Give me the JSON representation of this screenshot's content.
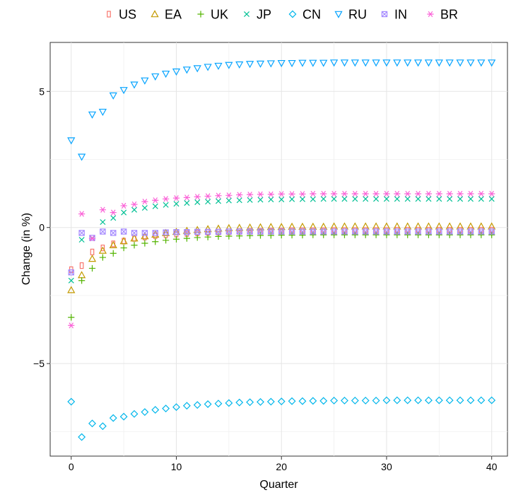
{
  "chart_data": {
    "type": "scatter",
    "title": "",
    "xlabel": "Quarter",
    "ylabel": "Change (in %)",
    "xlim": [
      -2,
      41.5
    ],
    "ylim": [
      -8.4,
      6.8
    ],
    "x_ticks": [
      0,
      10,
      20,
      30,
      40
    ],
    "y_ticks": [
      -5,
      0,
      5
    ],
    "y_tick_labels": [
      "−5",
      "0",
      "5"
    ],
    "grid": true,
    "legend_position": "top",
    "x": [
      0,
      1,
      2,
      3,
      4,
      5,
      6,
      7,
      8,
      9,
      10,
      11,
      12,
      13,
      14,
      15,
      16,
      17,
      18,
      19,
      20,
      21,
      22,
      23,
      24,
      25,
      26,
      27,
      28,
      29,
      30,
      31,
      32,
      33,
      34,
      35,
      36,
      37,
      38,
      39,
      40
    ],
    "series": [
      {
        "name": "US",
        "marker": "square-outline",
        "color": "#F8766D",
        "values": [
          -1.55,
          -1.4,
          -0.9,
          -0.75,
          -0.6,
          -0.5,
          -0.4,
          -0.35,
          -0.3,
          -0.27,
          -0.24,
          -0.22,
          -0.2,
          -0.18,
          -0.17,
          -0.16,
          -0.15,
          -0.14,
          -0.14,
          -0.13,
          -0.13,
          -0.12,
          -0.12,
          -0.12,
          -0.12,
          -0.11,
          -0.11,
          -0.11,
          -0.11,
          -0.11,
          -0.11,
          -0.1,
          -0.1,
          -0.1,
          -0.1,
          -0.1,
          -0.1,
          -0.1,
          -0.1,
          -0.1,
          -0.1
        ]
      },
      {
        "name": "EA",
        "marker": "triangle-up",
        "color": "#C49A00",
        "values": [
          -2.3,
          -1.75,
          -1.15,
          -0.85,
          -0.65,
          -0.5,
          -0.4,
          -0.32,
          -0.26,
          -0.2,
          -0.16,
          -0.12,
          -0.09,
          -0.06,
          -0.04,
          -0.02,
          -0.01,
          0.0,
          0.01,
          0.02,
          0.02,
          0.03,
          0.03,
          0.03,
          0.03,
          0.04,
          0.04,
          0.04,
          0.04,
          0.04,
          0.04,
          0.04,
          0.04,
          0.04,
          0.04,
          0.04,
          0.04,
          0.04,
          0.04,
          0.04,
          0.04
        ]
      },
      {
        "name": "UK",
        "marker": "plus",
        "color": "#53B400",
        "values": [
          -3.3,
          -1.95,
          -1.5,
          -1.1,
          -0.95,
          -0.75,
          -0.65,
          -0.58,
          -0.52,
          -0.47,
          -0.43,
          -0.4,
          -0.37,
          -0.35,
          -0.33,
          -0.32,
          -0.31,
          -0.3,
          -0.29,
          -0.29,
          -0.28,
          -0.28,
          -0.28,
          -0.27,
          -0.27,
          -0.27,
          -0.27,
          -0.27,
          -0.27,
          -0.27,
          -0.27,
          -0.27,
          -0.27,
          -0.27,
          -0.27,
          -0.27,
          -0.27,
          -0.27,
          -0.27,
          -0.27,
          -0.27
        ]
      },
      {
        "name": "JP",
        "marker": "cross",
        "color": "#00C094",
        "values": [
          -1.95,
          -0.45,
          -0.4,
          0.2,
          0.35,
          0.55,
          0.65,
          0.72,
          0.78,
          0.83,
          0.87,
          0.9,
          0.93,
          0.95,
          0.97,
          0.99,
          1.0,
          1.01,
          1.02,
          1.03,
          1.03,
          1.04,
          1.04,
          1.04,
          1.05,
          1.05,
          1.05,
          1.05,
          1.05,
          1.05,
          1.05,
          1.05,
          1.05,
          1.05,
          1.05,
          1.05,
          1.05,
          1.05,
          1.05,
          1.05,
          1.05
        ]
      },
      {
        "name": "CN",
        "marker": "diamond",
        "color": "#00B6EB",
        "values": [
          -6.4,
          -7.7,
          -7.2,
          -7.3,
          -7.0,
          -6.95,
          -6.85,
          -6.78,
          -6.7,
          -6.65,
          -6.6,
          -6.55,
          -6.52,
          -6.49,
          -6.47,
          -6.45,
          -6.43,
          -6.42,
          -6.41,
          -6.4,
          -6.39,
          -6.38,
          -6.38,
          -6.37,
          -6.37,
          -6.36,
          -6.36,
          -6.36,
          -6.36,
          -6.36,
          -6.35,
          -6.35,
          -6.35,
          -6.35,
          -6.35,
          -6.35,
          -6.35,
          -6.35,
          -6.35,
          -6.35,
          -6.35
        ]
      },
      {
        "name": "RU",
        "marker": "triangle-down",
        "color": "#06A4FF",
        "values": [
          3.2,
          2.6,
          4.15,
          4.25,
          4.85,
          5.05,
          5.25,
          5.4,
          5.55,
          5.65,
          5.73,
          5.8,
          5.85,
          5.9,
          5.94,
          5.97,
          5.99,
          6.01,
          6.02,
          6.03,
          6.04,
          6.04,
          6.05,
          6.05,
          6.05,
          6.06,
          6.06,
          6.06,
          6.06,
          6.06,
          6.06,
          6.06,
          6.06,
          6.06,
          6.06,
          6.06,
          6.06,
          6.06,
          6.06,
          6.06,
          6.06
        ]
      },
      {
        "name": "IN",
        "marker": "square-cross",
        "color": "#A58AFF",
        "values": [
          -1.65,
          -0.2,
          -0.38,
          -0.15,
          -0.2,
          -0.15,
          -0.2,
          -0.2,
          -0.2,
          -0.18,
          -0.17,
          -0.17,
          -0.16,
          -0.16,
          -0.16,
          -0.15,
          -0.15,
          -0.15,
          -0.15,
          -0.15,
          -0.15,
          -0.15,
          -0.15,
          -0.15,
          -0.15,
          -0.15,
          -0.15,
          -0.15,
          -0.15,
          -0.15,
          -0.15,
          -0.15,
          -0.15,
          -0.15,
          -0.15,
          -0.15,
          -0.15,
          -0.15,
          -0.15,
          -0.15,
          -0.15
        ]
      },
      {
        "name": "BR",
        "marker": "asterisk",
        "color": "#FB61D7",
        "values": [
          -3.6,
          0.5,
          -0.4,
          0.65,
          0.55,
          0.8,
          0.85,
          0.95,
          1.0,
          1.05,
          1.08,
          1.1,
          1.13,
          1.15,
          1.17,
          1.18,
          1.2,
          1.21,
          1.22,
          1.22,
          1.23,
          1.23,
          1.23,
          1.24,
          1.24,
          1.24,
          1.24,
          1.24,
          1.24,
          1.24,
          1.24,
          1.24,
          1.24,
          1.24,
          1.24,
          1.24,
          1.24,
          1.24,
          1.24,
          1.24,
          1.24
        ]
      }
    ]
  }
}
